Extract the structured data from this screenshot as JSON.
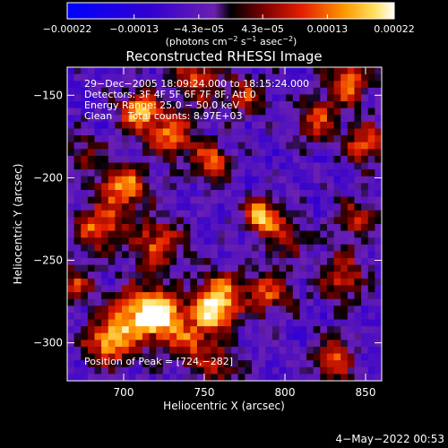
{
  "chart_data": {
    "type": "heatmap",
    "title": "Reconstructed RHESSI Image",
    "xlabel": "Heliocentric X (arcsec)",
    "ylabel": "Heliocentric Y (arcsec)",
    "xlim": [
      665,
      860
    ],
    "ylim": [
      -323,
      -133
    ],
    "xticks": [
      {
        "value": 700,
        "label": "700"
      },
      {
        "value": 750,
        "label": "750"
      },
      {
        "value": 800,
        "label": "800"
      },
      {
        "value": 850,
        "label": "850"
      }
    ],
    "yticks": [
      {
        "value": -150,
        "label": "−150"
      },
      {
        "value": -200,
        "label": "−200"
      },
      {
        "value": -250,
        "label": "−250"
      },
      {
        "value": -300,
        "label": "−300"
      }
    ],
    "colorbar": {
      "range": [
        -0.00022,
        0.00022
      ],
      "ticks": [
        {
          "value": -0.00022,
          "label": "−0.00022"
        },
        {
          "value": -0.00013,
          "label": "−0.00013"
        },
        {
          "value": -4.3e-05,
          "label": "−4.3e−05"
        },
        {
          "value": 4.3e-05,
          "label": "4.3e−05"
        },
        {
          "value": 0.00013,
          "label": "0.00013"
        },
        {
          "value": 0.00022,
          "label": "0.00022"
        }
      ],
      "unit": {
        "base": "(photons cm",
        "e1": "−2",
        "mid1": " s",
        "e2": "−1",
        "mid2": " asec",
        "e3": "−2",
        "end": ")"
      }
    },
    "annotations": [
      "29−Dec−2005 18:09:24.000 to 18:15:24.000",
      "Detectors: 3F 4F 5F 6F 7F 8F, Att 0",
      "Energy Range: 25.0 − 50.0 keV",
      "Clean     Total counts: 8.97E+03"
    ],
    "peak_label": "Position of Peak = [724,−282]",
    "blobs": [
      {
        "x": 724,
        "y": -282,
        "amp": 1.15,
        "s": 9
      },
      {
        "x": 708,
        "y": -284,
        "amp": 0.95,
        "s": 12
      },
      {
        "x": 690,
        "y": -300,
        "amp": 0.9,
        "s": 10
      },
      {
        "x": 740,
        "y": -300,
        "amp": 0.7,
        "s": 9
      },
      {
        "x": 760,
        "y": -270,
        "amp": 0.8,
        "s": 10
      },
      {
        "x": 755,
        "y": -283,
        "amp": 0.9,
        "s": 9
      },
      {
        "x": 785,
        "y": -223,
        "amp": 1.1,
        "s": 7
      },
      {
        "x": 800,
        "y": -235,
        "amp": 0.6,
        "s": 9
      },
      {
        "x": 790,
        "y": -270,
        "amp": 0.7,
        "s": 10
      },
      {
        "x": 700,
        "y": -205,
        "amp": 0.95,
        "s": 10
      },
      {
        "x": 685,
        "y": -230,
        "amp": 0.85,
        "s": 10
      },
      {
        "x": 720,
        "y": -240,
        "amp": 0.7,
        "s": 12
      },
      {
        "x": 710,
        "y": -160,
        "amp": 1.0,
        "s": 9
      },
      {
        "x": 730,
        "y": -175,
        "amp": 0.8,
        "s": 10
      },
      {
        "x": 755,
        "y": -190,
        "amp": 0.85,
        "s": 8
      },
      {
        "x": 745,
        "y": -140,
        "amp": 0.7,
        "s": 10
      },
      {
        "x": 775,
        "y": -150,
        "amp": 0.6,
        "s": 9
      },
      {
        "x": 840,
        "y": -143,
        "amp": 0.9,
        "s": 9
      },
      {
        "x": 820,
        "y": -165,
        "amp": 0.7,
        "s": 9
      },
      {
        "x": 850,
        "y": -180,
        "amp": 0.75,
        "s": 9
      },
      {
        "x": 845,
        "y": -225,
        "amp": 0.6,
        "s": 9
      },
      {
        "x": 835,
        "y": -260,
        "amp": 0.7,
        "s": 10
      },
      {
        "x": 830,
        "y": -310,
        "amp": 0.75,
        "s": 9
      },
      {
        "x": 760,
        "y": -315,
        "amp": 0.55,
        "s": 9
      },
      {
        "x": 670,
        "y": -265,
        "amp": 0.6,
        "s": 8
      },
      {
        "x": 675,
        "y": -185,
        "amp": 0.45,
        "s": 8
      }
    ],
    "grid": false
  },
  "footer_date": "4−May−2022 00:53"
}
